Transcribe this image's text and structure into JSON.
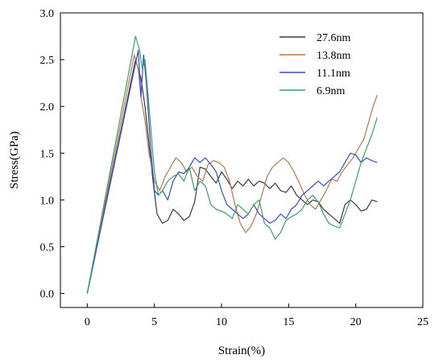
{
  "chart_data": {
    "type": "line",
    "xlabel": "Strain(%)",
    "ylabel": "Stress(GPa)",
    "xlim": [
      -2,
      25
    ],
    "ylim": [
      -0.15,
      3.0
    ],
    "xticks": [
      0,
      5,
      10,
      15,
      20,
      25
    ],
    "xtick_labels": [
      "0",
      "5",
      "10",
      "15",
      "20",
      "25"
    ],
    "yticks": [
      0.0,
      0.5,
      1.0,
      1.5,
      2.0,
      2.5,
      3.0
    ],
    "ytick_labels": [
      "0.0",
      "0.5",
      "1.0",
      "1.5",
      "2.0",
      "2.5",
      "3.0"
    ],
    "grid": false,
    "legend_position": "top-right",
    "series": [
      {
        "name": "27.6nm",
        "color": "#3a3a3a",
        "x": [
          0,
          3.6,
          4.0,
          4.3,
          4.6,
          4.9,
          5.2,
          5.6,
          6.0,
          6.4,
          6.8,
          7.2,
          7.6,
          8.0,
          8.4,
          8.8,
          9.2,
          9.6,
          10.0,
          10.4,
          10.8,
          11.2,
          11.6,
          12.0,
          12.4,
          12.8,
          13.2,
          13.6,
          14.0,
          14.4,
          14.8,
          15.2,
          15.6,
          16.0,
          16.4,
          16.8,
          17.2,
          17.6,
          18.0,
          18.4,
          18.8,
          19.2,
          19.6,
          20.0,
          20.4,
          20.8,
          21.2,
          21.6
        ],
        "y": [
          0,
          2.5,
          2.3,
          2.0,
          1.6,
          1.2,
          0.85,
          0.75,
          0.78,
          0.9,
          0.85,
          0.78,
          0.82,
          0.98,
          1.35,
          1.33,
          1.25,
          1.18,
          1.3,
          1.22,
          1.12,
          1.2,
          1.15,
          1.22,
          1.15,
          1.2,
          1.18,
          1.12,
          1.18,
          1.1,
          1.08,
          1.15,
          1.05,
          1.0,
          0.95,
          1.0,
          0.98,
          0.9,
          0.85,
          0.8,
          0.75,
          0.95,
          1.0,
          0.95,
          0.88,
          0.9,
          1.0,
          0.98
        ]
      },
      {
        "name": "13.8nm",
        "color": "#b8764a",
        "x": [
          0,
          3.5,
          3.8,
          4.0,
          4.3,
          4.6,
          5.0,
          5.4,
          5.8,
          6.2,
          6.6,
          7.0,
          7.4,
          7.8,
          8.2,
          8.6,
          9.0,
          9.4,
          9.8,
          10.2,
          10.6,
          11.0,
          11.4,
          11.8,
          12.2,
          12.6,
          13.0,
          13.4,
          13.8,
          14.2,
          14.6,
          15.0,
          15.4,
          15.8,
          16.2,
          16.6,
          17.0,
          17.4,
          17.8,
          18.2,
          18.6,
          19.0,
          19.4,
          19.8,
          20.2,
          20.6,
          21.0,
          21.3,
          21.6
        ],
        "y": [
          0,
          2.55,
          2.4,
          2.1,
          1.85,
          1.5,
          1.2,
          1.1,
          1.25,
          1.35,
          1.45,
          1.4,
          1.3,
          1.35,
          1.25,
          1.2,
          1.38,
          1.42,
          1.4,
          1.35,
          1.2,
          0.95,
          0.75,
          0.65,
          0.72,
          0.85,
          1.05,
          1.25,
          1.35,
          1.4,
          1.45,
          1.4,
          1.3,
          1.18,
          1.05,
          0.95,
          0.9,
          1.0,
          1.1,
          1.22,
          1.2,
          1.3,
          1.38,
          1.45,
          1.55,
          1.65,
          1.85,
          2.0,
          2.12
        ]
      },
      {
        "name": "11.1nm",
        "color": "#3a4ac8",
        "x": [
          0,
          3.8,
          4.0,
          4.2,
          4.4,
          4.7,
          5.0,
          5.3,
          5.6,
          6.0,
          6.4,
          6.8,
          7.2,
          7.6,
          8.0,
          8.4,
          8.8,
          9.2,
          9.6,
          10.0,
          10.4,
          10.8,
          11.2,
          11.6,
          12.0,
          12.4,
          12.8,
          13.2,
          13.6,
          14.0,
          14.4,
          14.8,
          15.2,
          15.6,
          16.0,
          16.4,
          16.8,
          17.2,
          17.6,
          18.0,
          18.4,
          18.8,
          19.2,
          19.6,
          20.0,
          20.4,
          20.8,
          21.2,
          21.6
        ],
        "y": [
          0,
          2.6,
          2.1,
          2.55,
          2.25,
          1.6,
          1.1,
          1.05,
          1.1,
          1.0,
          1.2,
          1.3,
          1.28,
          1.35,
          1.45,
          1.4,
          1.45,
          1.38,
          1.3,
          1.1,
          0.95,
          0.9,
          0.85,
          0.8,
          0.85,
          0.95,
          0.85,
          0.8,
          0.75,
          0.78,
          0.85,
          0.8,
          0.9,
          0.95,
          1.05,
          1.1,
          1.15,
          1.2,
          1.15,
          1.2,
          1.25,
          1.3,
          1.4,
          1.5,
          1.48,
          1.4,
          1.45,
          1.42,
          1.4
        ]
      },
      {
        "name": "6.9nm",
        "color": "#3aa06a",
        "x": [
          0,
          3.6,
          3.9,
          4.1,
          4.3,
          4.6,
          5.0,
          5.3,
          5.6,
          6.0,
          6.4,
          6.8,
          7.2,
          7.6,
          8.0,
          8.4,
          8.8,
          9.2,
          9.6,
          10.0,
          10.4,
          10.8,
          11.2,
          11.6,
          12.0,
          12.4,
          12.8,
          13.2,
          13.6,
          14.0,
          14.4,
          14.8,
          15.2,
          15.6,
          16.0,
          16.4,
          16.8,
          17.2,
          17.6,
          18.0,
          18.4,
          18.8,
          19.2,
          19.6,
          20.0,
          20.4,
          20.8,
          21.2,
          21.6
        ],
        "y": [
          0,
          2.75,
          2.6,
          2.4,
          2.5,
          2.0,
          1.3,
          1.05,
          1.1,
          1.2,
          1.25,
          1.28,
          1.2,
          1.35,
          1.1,
          1.2,
          1.15,
          0.95,
          0.9,
          0.88,
          0.85,
          0.8,
          0.95,
          0.9,
          0.85,
          0.95,
          1.0,
          0.75,
          0.7,
          0.58,
          0.65,
          0.78,
          0.82,
          0.85,
          0.9,
          1.0,
          1.05,
          0.98,
          0.85,
          0.75,
          0.72,
          0.7,
          0.85,
          1.0,
          1.2,
          1.4,
          1.55,
          1.7,
          1.88
        ]
      }
    ]
  }
}
